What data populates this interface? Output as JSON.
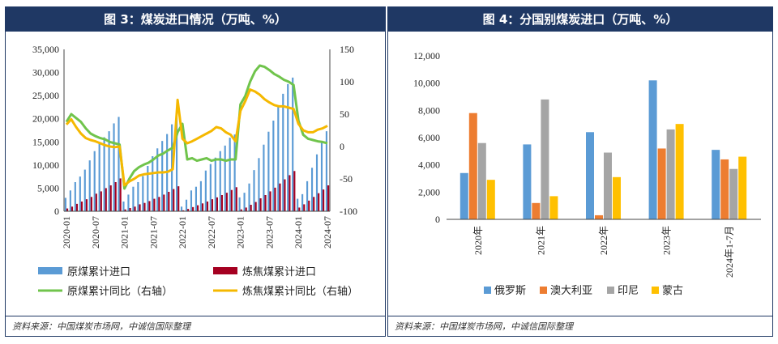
{
  "panel1": {
    "title": "图 3：煤炭进口情况（万吨、%）",
    "source": "资料来源：中国煤炭市场网，中诚信国际整理"
  },
  "panel2": {
    "title": "图 4：分国别煤炭进口（万吨、%）",
    "source": "资料来源：中国煤炭市场网，中诚信国际整理"
  },
  "chart_data": [
    {
      "type": "bar+line",
      "title": "图 3：煤炭进口情况（万吨、%）",
      "x_tick_labels": [
        "2020-01",
        "2020-07",
        "2021-01",
        "2021-07",
        "2022-01",
        "2022-07",
        "2023-01",
        "2023-07",
        "2024-01",
        "2024-07"
      ],
      "y_left": {
        "ylim": [
          0,
          35000
        ],
        "ticks": [
          "0",
          "5,000",
          "10,000",
          "15,000",
          "20,000",
          "25,000",
          "30,000",
          "35,000"
        ]
      },
      "y_right": {
        "ylim": [
          -100,
          150
        ],
        "ticks": [
          "-100",
          "-50",
          "0",
          "50",
          "100",
          "150"
        ]
      },
      "series": [
        {
          "name": "原煤累计进口",
          "kind": "bar",
          "axis": "left",
          "color": "#5b9bd5",
          "values": [
            2900,
            4500,
            6300,
            7500,
            9000,
            11000,
            13000,
            14800,
            16000,
            17300,
            19000,
            20400,
            2100,
            3600,
            5300,
            6300,
            7600,
            9800,
            11900,
            13600,
            15200,
            16700,
            18800,
            20200,
            1000,
            2500,
            4500,
            5300,
            6500,
            8800,
            10200,
            11600,
            13000,
            14200,
            15900,
            16600,
            3000,
            4000,
            6000,
            8900,
            11500,
            14400,
            17200,
            19600,
            22600,
            25400,
            27500,
            28900,
            2700,
            3700,
            6500,
            9400,
            12300,
            14800,
            17300
          ]
        },
        {
          "name": "炼焦煤累计进口",
          "kind": "bar",
          "axis": "left",
          "color": "#a50021",
          "values": [
            600,
            1000,
            1600,
            2100,
            2600,
            3100,
            3800,
            4300,
            5000,
            5600,
            6300,
            7100,
            400,
            700,
            1000,
            1500,
            1800,
            2200,
            2700,
            3100,
            3600,
            4200,
            4800,
            5400,
            200,
            500,
            900,
            1300,
            1700,
            2100,
            2600,
            3000,
            3500,
            4000,
            4600,
            5200,
            400,
            800,
            1400,
            2000,
            2800,
            3500,
            4300,
            5100,
            6000,
            6900,
            7800,
            8700,
            800,
            1500,
            2300,
            3100,
            3900,
            4700,
            5600
          ]
        },
        {
          "name": "原煤累计同比（右轴）",
          "kind": "line",
          "axis": "right",
          "color": "#70c44c",
          "values": [
            38,
            50,
            44,
            38,
            28,
            20,
            16,
            13,
            11,
            7,
            5,
            3,
            -65,
            -50,
            -38,
            -32,
            -28,
            -25,
            -20,
            -14,
            -11,
            -6,
            -2,
            22,
            35,
            -20,
            -18,
            -22,
            -20,
            -18,
            -22,
            -20,
            -20,
            -22,
            -20,
            -20,
            65,
            78,
            100,
            116,
            125,
            123,
            118,
            112,
            108,
            103,
            100,
            95,
            40,
            18,
            12,
            10,
            8,
            7,
            5
          ]
        },
        {
          "name": "炼焦煤累计同比（右轴）",
          "kind": "line",
          "axis": "right",
          "color": "#f5b800",
          "values": [
            34,
            42,
            30,
            20,
            13,
            10,
            8,
            5,
            2,
            0,
            -1,
            0,
            -60,
            -54,
            -50,
            -45,
            -43,
            -42,
            -41,
            -40,
            -40,
            -39,
            -35,
            72,
            12,
            5,
            8,
            12,
            16,
            20,
            24,
            30,
            28,
            22,
            18,
            8,
            55,
            70,
            88,
            85,
            80,
            73,
            68,
            64,
            62,
            62,
            60,
            58,
            35,
            25,
            22,
            22,
            26,
            28,
            32
          ]
        }
      ]
    },
    {
      "type": "bar",
      "title": "图 4：分国别煤炭进口（万吨、%）",
      "categories": [
        "2020年",
        "2021年",
        "2022年",
        "2023年",
        "2024年1-7月"
      ],
      "ylim": [
        0,
        12000
      ],
      "ticks": [
        "0",
        "2,000",
        "4,000",
        "6,000",
        "8,000",
        "10,000",
        "12,000"
      ],
      "series": [
        {
          "name": "俄罗斯",
          "color": "#5b9bd5",
          "values": [
            3400,
            5500,
            6400,
            10200,
            5100
          ]
        },
        {
          "name": "澳大利亚",
          "color": "#ed7d31",
          "values": [
            7800,
            1200,
            300,
            5200,
            4400
          ]
        },
        {
          "name": "印尼",
          "color": "#a5a5a5",
          "values": [
            5600,
            8800,
            4900,
            6600,
            3700
          ]
        },
        {
          "name": "蒙古",
          "color": "#ffc000",
          "values": [
            2900,
            1700,
            3100,
            7000,
            4600
          ]
        }
      ]
    }
  ]
}
